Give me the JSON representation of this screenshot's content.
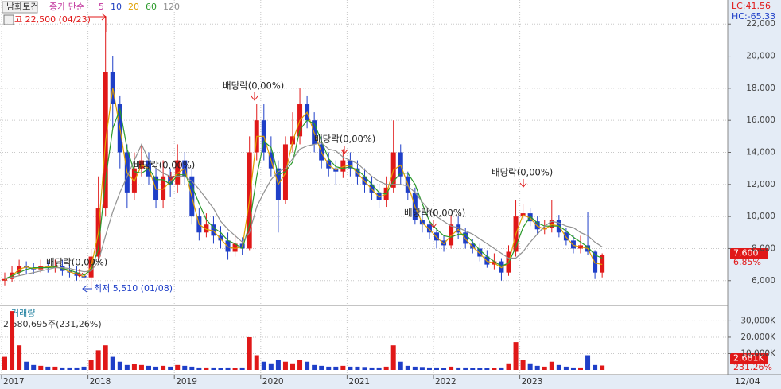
{
  "chart_data": [
    {
      "type": "candlestick",
      "title": "남화토건",
      "legend_label": "종가 단순",
      "legend_items": [
        {
          "label": "5",
          "color": "#c0309a"
        },
        {
          "label": "10",
          "color": "#2040c0"
        },
        {
          "label": "20",
          "color": "#e0a000"
        },
        {
          "label": "60",
          "color": "#2a9a2a"
        },
        {
          "label": "120",
          "color": "#909090"
        }
      ],
      "lc_label": "LC:41.56",
      "hc_label": "HC:-65.33",
      "high_label": "고 22,500 (04/23)",
      "low_label": "최저 5,510 (01/08)",
      "dividend_labels": [
        "배당락(0,00%)",
        "배당락(0,00%)",
        "배당락(0,00%)",
        "배당락(0,00%)",
        "배당락(0,00%)",
        "배당락(0,00%)"
      ],
      "last_price_label": "7,600",
      "change_label": "6.85%",
      "x_end_label": "12/04",
      "up_color": "#e01818",
      "down_color": "#1f3fc8",
      "categories": [
        "2017",
        null,
        null,
        null,
        null,
        null,
        null,
        null,
        null,
        null,
        null,
        null,
        "2018",
        null,
        null,
        null,
        null,
        null,
        null,
        null,
        null,
        null,
        null,
        null,
        "2019",
        null,
        null,
        null,
        null,
        null,
        null,
        null,
        null,
        null,
        null,
        null,
        "2020",
        null,
        null,
        null,
        null,
        null,
        null,
        null,
        null,
        null,
        null,
        null,
        "2021",
        null,
        null,
        null,
        null,
        null,
        null,
        null,
        null,
        null,
        null,
        null,
        "2022",
        null,
        null,
        null,
        null,
        null,
        null,
        null,
        null,
        null,
        null,
        null,
        "2023",
        null,
        null,
        null,
        null,
        null,
        null,
        null,
        null,
        null,
        null,
        null
      ],
      "open": [
        6000,
        6100,
        6500,
        6900,
        6800,
        6700,
        6900,
        6800,
        6900,
        6600,
        6500,
        6300,
        6200,
        7500,
        10500,
        19000,
        17000,
        14000,
        11500,
        13000,
        13500,
        12500,
        11000,
        12500,
        12000,
        13500,
        12500,
        10000,
        9000,
        9500,
        8800,
        8500,
        7800,
        8300,
        8000,
        14000,
        16000,
        14000,
        13000,
        11000,
        14500,
        15000,
        17000,
        16000,
        14500,
        13500,
        13000,
        12800,
        13500,
        13000,
        12500,
        12000,
        11500,
        11000,
        11800,
        14000,
        12500,
        11500,
        9800,
        9500,
        9000,
        8500,
        8200,
        9500,
        9000,
        8300,
        8000,
        7500,
        7000,
        7200,
        6500,
        7800,
        10000,
        10200,
        9700,
        9200,
        9300,
        9800,
        9000,
        8500,
        8000,
        8200,
        7800,
        6500
      ],
      "high": [
        6500,
        6900,
        7300,
        7200,
        7100,
        7300,
        7200,
        7300,
        7300,
        7000,
        6900,
        6700,
        8000,
        12500,
        22500,
        20000,
        17500,
        14500,
        14000,
        14500,
        14000,
        13000,
        13500,
        13000,
        14500,
        14000,
        13000,
        10500,
        10200,
        10000,
        9400,
        9000,
        8900,
        8700,
        15000,
        17000,
        17000,
        15000,
        13500,
        15000,
        16500,
        18000,
        17500,
        16500,
        15000,
        14000,
        13500,
        14200,
        14000,
        13500,
        13000,
        12500,
        12000,
        12500,
        16000,
        14500,
        12800,
        11800,
        10300,
        9800,
        9300,
        8800,
        10100,
        10000,
        9300,
        8600,
        8300,
        7900,
        7700,
        7400,
        8200,
        11000,
        10800,
        10500,
        10000,
        9800,
        11000,
        10100,
        9300,
        8800,
        8800,
        10300,
        7900,
        7700
      ],
      "low": [
        5700,
        5900,
        6300,
        6400,
        6400,
        6500,
        6500,
        6500,
        6300,
        6200,
        6000,
        5900,
        5510,
        7200,
        10000,
        15500,
        13000,
        10500,
        11000,
        12500,
        12000,
        10500,
        10500,
        11200,
        11500,
        12000,
        9500,
        8500,
        8700,
        8300,
        8000,
        7300,
        7500,
        7600,
        7900,
        13500,
        13500,
        12500,
        9000,
        10800,
        14000,
        14500,
        15500,
        14000,
        13000,
        12500,
        12000,
        12400,
        12500,
        12000,
        11500,
        11000,
        10500,
        10600,
        11500,
        12000,
        11000,
        9500,
        9000,
        8600,
        8000,
        7800,
        8000,
        8600,
        8000,
        7700,
        7200,
        6800,
        6700,
        6000,
        6300,
        7500,
        9800,
        9400,
        8900,
        8900,
        9000,
        8700,
        8200,
        7700,
        7700,
        7600,
        6100,
        6200
      ],
      "close": [
        6100,
        6500,
        6900,
        6800,
        6700,
        6900,
        6800,
        6900,
        6600,
        6500,
        6300,
        6200,
        7500,
        10500,
        19000,
        17000,
        14000,
        11500,
        13000,
        13500,
        12500,
        11000,
        12500,
        12000,
        13500,
        12500,
        10000,
        9000,
        9500,
        8800,
        8500,
        7800,
        8300,
        8000,
        14000,
        16000,
        14000,
        13000,
        11000,
        14500,
        15000,
        17000,
        16000,
        14500,
        13500,
        13000,
        12800,
        13500,
        13000,
        12500,
        12000,
        11500,
        11000,
        11800,
        14000,
        12500,
        11500,
        9800,
        9500,
        9000,
        8500,
        8200,
        9500,
        9000,
        8300,
        8000,
        7500,
        7000,
        7200,
        6500,
        7800,
        10000,
        10200,
        9700,
        9200,
        9300,
        9800,
        9000,
        8500,
        8000,
        8200,
        7800,
        6500,
        7600
      ],
      "series": [
        {
          "color": "#e0a000",
          "values": [
            6050,
            6300,
            6700,
            6850,
            6750,
            6800,
            6850,
            6850,
            6750,
            6550,
            6400,
            6250,
            6850,
            9000,
            14700,
            18000,
            15500,
            12700,
            12200,
            13200,
            13000,
            11700,
            11700,
            12200,
            12700,
            13000,
            11200,
            9500,
            9200,
            9100,
            8600,
            8100,
            8000,
            8100,
            11000,
            15000,
            15000,
            13500,
            12000,
            12700,
            14700,
            16000,
            16500,
            15200,
            14000,
            13200,
            12900,
            13100,
            13200,
            12700,
            12200,
            11700,
            11200,
            11400,
            12900,
            13200,
            12000,
            10600,
            9600,
            9200,
            8700,
            8300,
            8800,
            9200,
            8600,
            8100,
            7700,
            7200,
            7100,
            6800,
            7100,
            8900,
            10100,
            9900,
            9400,
            9200,
            9500,
            9400,
            8700,
            8200,
            8100,
            8000,
            7100,
            7000
          ]
        },
        {
          "color": "#2a9a2a",
          "values": [
            6100,
            6300,
            6500,
            6700,
            6800,
            6800,
            6800,
            6850,
            6750,
            6650,
            6500,
            6350,
            6650,
            8000,
            12300,
            15500,
            16700,
            14200,
            12800,
            12700,
            13000,
            12300,
            12300,
            12000,
            12600,
            12600,
            11900,
            10800,
            9800,
            9300,
            9000,
            8500,
            8300,
            8000,
            9500,
            12500,
            14700,
            14300,
            12600,
            12800,
            13400,
            15400,
            16000,
            15800,
            14700,
            13600,
            13100,
            13000,
            13100,
            12900,
            12500,
            12000,
            11500,
            11400,
            12200,
            12700,
            12700,
            12000,
            10800,
            9700,
            9200,
            8800,
            8700,
            8900,
            8900,
            8400,
            7900,
            7500,
            7200,
            6900,
            7100,
            8100,
            9300,
            10000,
            9600,
            9400,
            9400,
            9400,
            9100,
            8700,
            8400,
            8100,
            7600,
            7400
          ]
        },
        {
          "color": "#909090",
          "values": [
            6100,
            6200,
            6300,
            6400,
            6500,
            6600,
            6700,
            6800,
            6800,
            6750,
            6650,
            6550,
            6600,
            7200,
            8800,
            10300,
            11500,
            12500,
            13500,
            14500,
            13500,
            13000,
            12700,
            12500,
            12500,
            12500,
            12200,
            11700,
            11100,
            10500,
            9700,
            9200,
            8800,
            8400,
            9000,
            10600,
            11500,
            12300,
            12800,
            13000,
            13600,
            14200,
            14400,
            14500,
            14600,
            14200,
            14100,
            13700,
            13500,
            13300,
            12900,
            12500,
            12200,
            12000,
            12000,
            12000,
            11900,
            11500,
            10900,
            10400,
            10000,
            9700,
            9400,
            9300,
            9100,
            8900,
            8600,
            8300,
            8000,
            7700,
            7400,
            7400,
            7800,
            8400,
            8900,
            9400,
            9700,
            9600,
            9400,
            9300,
            9000,
            8800,
            8400,
            8100
          ]
        }
      ],
      "ylim": [
        4500,
        23500
      ],
      "yticks": [
        {
          "value": 6000,
          "label": "6,000"
        },
        {
          "value": 8000,
          "label": "8,000"
        },
        {
          "value": 10000,
          "label": "10,000"
        },
        {
          "value": 12000,
          "label": "12,000"
        },
        {
          "value": 14000,
          "label": "14,000"
        },
        {
          "value": 16000,
          "label": "16,000"
        },
        {
          "value": 18000,
          "label": "18,000"
        },
        {
          "value": 20000,
          "label": "20,000"
        },
        {
          "value": 22000,
          "label": "22,000"
        }
      ],
      "grid": true
    },
    {
      "type": "bar",
      "title": "거래량",
      "subtitle": "2,680,695주(231,26%)",
      "last_value_label": "2,681K",
      "change_label": "231.26%",
      "values": [
        8000,
        36000,
        15000,
        5000,
        3000,
        2500,
        2000,
        2000,
        1500,
        1500,
        1500,
        2000,
        6000,
        12000,
        15000,
        8000,
        5000,
        3000,
        3500,
        3000,
        2500,
        2000,
        2500,
        2000,
        3000,
        2500,
        2000,
        1500,
        1500,
        1500,
        1200,
        1500,
        1200,
        1500,
        20000,
        9000,
        5000,
        4000,
        6000,
        5000,
        4000,
        6000,
        5000,
        3000,
        2500,
        2000,
        2000,
        2500,
        2000,
        2000,
        1800,
        1500,
        1500,
        2000,
        15000,
        5000,
        2500,
        2000,
        1800,
        1500,
        1500,
        1200,
        2000,
        1500,
        1500,
        1200,
        1200,
        1000,
        1200,
        1500,
        4000,
        17000,
        6000,
        4000,
        2500,
        2000,
        5000,
        3000,
        2000,
        1500,
        1500,
        9000,
        3000,
        2681
      ],
      "ylim": [
        0,
        38000
      ],
      "yticks": [
        {
          "value": 10000,
          "label": "10,000K"
        },
        {
          "value": 20000,
          "label": "20,000K"
        },
        {
          "value": 30000,
          "label": "30,000K"
        }
      ],
      "grid": true
    }
  ]
}
